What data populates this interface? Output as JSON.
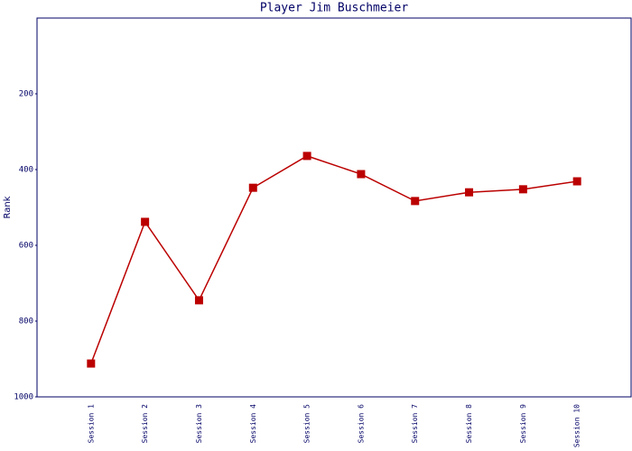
{
  "chart_data": {
    "type": "line",
    "title": "Player Jim Buschmeier",
    "y_label": "Rank",
    "categories": [
      "Session 1",
      "Session 2",
      "Session 3",
      "Session 4",
      "Session 5",
      "Session 6",
      "Session 7",
      "Session 8",
      "Session 9",
      "Session 10"
    ],
    "series": [
      {
        "name": "Rank",
        "color": "#bb0000",
        "values": [
          912,
          538,
          745,
          448,
          364,
          412,
          483,
          460,
          452,
          431
        ]
      }
    ],
    "ylim": [
      0,
      1000
    ],
    "yticks": [
      200,
      400,
      600,
      800,
      1000
    ],
    "y_inverted": true,
    "grid": false,
    "legend": false
  }
}
